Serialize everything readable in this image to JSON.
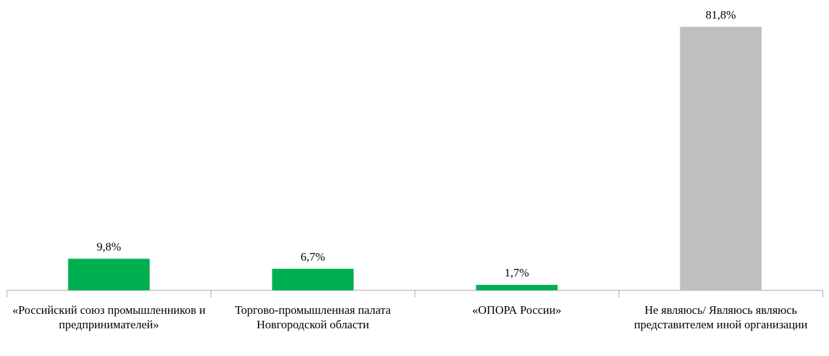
{
  "chart_data": {
    "type": "bar",
    "categories": [
      "«Российский союз промышленников и предпринимателей»",
      "Торгово-промышленная палата Новгородской области",
      "«ОПОРА России»",
      "Не являюсь/ Являюсь являюсь представителем иной организации"
    ],
    "values": [
      9.8,
      6.7,
      1.7,
      81.8
    ],
    "value_labels": [
      "9,8%",
      "6,7%",
      "1,7%",
      "81,8%"
    ],
    "colors": [
      "#00b050",
      "#00b050",
      "#00b050",
      "#bfbfbf"
    ]
  }
}
